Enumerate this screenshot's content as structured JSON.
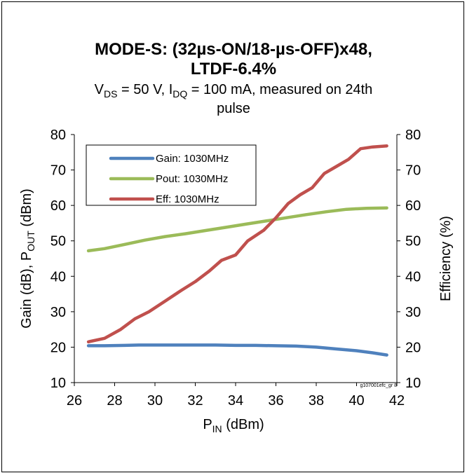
{
  "chart_data": {
    "type": "line",
    "title_line1": "MODE-S: (32µs-ON/18-µs-OFF)x48,",
    "title_line2": "LTDF-6.4%",
    "subtitle": {
      "vds_main": "V",
      "vds_sub": "DS",
      "vds_rest": " = 50 V, ",
      "idq_main": "I",
      "idq_sub": "DQ",
      "idq_rest": " = 100 mA, measured on 24th",
      "line2": "pulse"
    },
    "xlabel": {
      "main": "P",
      "sub": "IN",
      "rest": " (dBm)"
    },
    "ylabel_left": {
      "pre": "Gain (dB),  P",
      "sub": "OUT",
      "rest": " (dBm)"
    },
    "ylabel_right": "Efficiency (%)",
    "xlim": [
      26,
      42
    ],
    "ylim": [
      10,
      80
    ],
    "y2lim": [
      10,
      80
    ],
    "xticks": [
      26,
      28,
      30,
      32,
      34,
      36,
      38,
      40,
      42
    ],
    "yticks": [
      10,
      20,
      30,
      40,
      50,
      60,
      70,
      80
    ],
    "grid": false,
    "legend_position": "top-left",
    "watermark": "g107001efc_gr 8",
    "series": [
      {
        "name": "Gain: 1030MHz",
        "color": "#4f81bd",
        "x": [
          26.7,
          27.5,
          28.5,
          29.2,
          30,
          31,
          32,
          33,
          34,
          35,
          36,
          37,
          38,
          39,
          40,
          40.8,
          41.5
        ],
        "y": [
          20.4,
          20.4,
          20.5,
          20.6,
          20.6,
          20.6,
          20.6,
          20.6,
          20.5,
          20.5,
          20.4,
          20.3,
          20.0,
          19.5,
          19.0,
          18.4,
          17.8
        ]
      },
      {
        "name": "Pout: 1030MHz",
        "color": "#9bbb59",
        "x": [
          26.7,
          27.5,
          28.5,
          29.5,
          30.5,
          31.5,
          32.5,
          33.5,
          34.5,
          35.5,
          36.5,
          37.5,
          38.5,
          39.5,
          40.5,
          41.5
        ],
        "y": [
          47.2,
          47.8,
          49.0,
          50.2,
          51.2,
          52.0,
          52.9,
          53.8,
          54.7,
          55.6,
          56.5,
          57.4,
          58.2,
          58.9,
          59.2,
          59.3
        ]
      },
      {
        "name": "Eff: 1030MHz",
        "color": "#c0504d",
        "x": [
          26.7,
          27.5,
          28.3,
          29.0,
          29.7,
          30.5,
          31.3,
          32.0,
          32.7,
          33.3,
          34.0,
          34.6,
          35.4,
          36.0,
          36.6,
          37.2,
          37.8,
          38.4,
          39.0,
          39.6,
          40.2,
          40.8,
          41.5
        ],
        "y": [
          21.5,
          22.5,
          25.0,
          28.0,
          30.0,
          33.0,
          36.0,
          38.5,
          41.5,
          44.5,
          46.0,
          50.0,
          53.0,
          56.5,
          60.5,
          63.0,
          65.0,
          69.0,
          71.0,
          73.0,
          76.0,
          76.5,
          76.8
        ]
      }
    ]
  }
}
